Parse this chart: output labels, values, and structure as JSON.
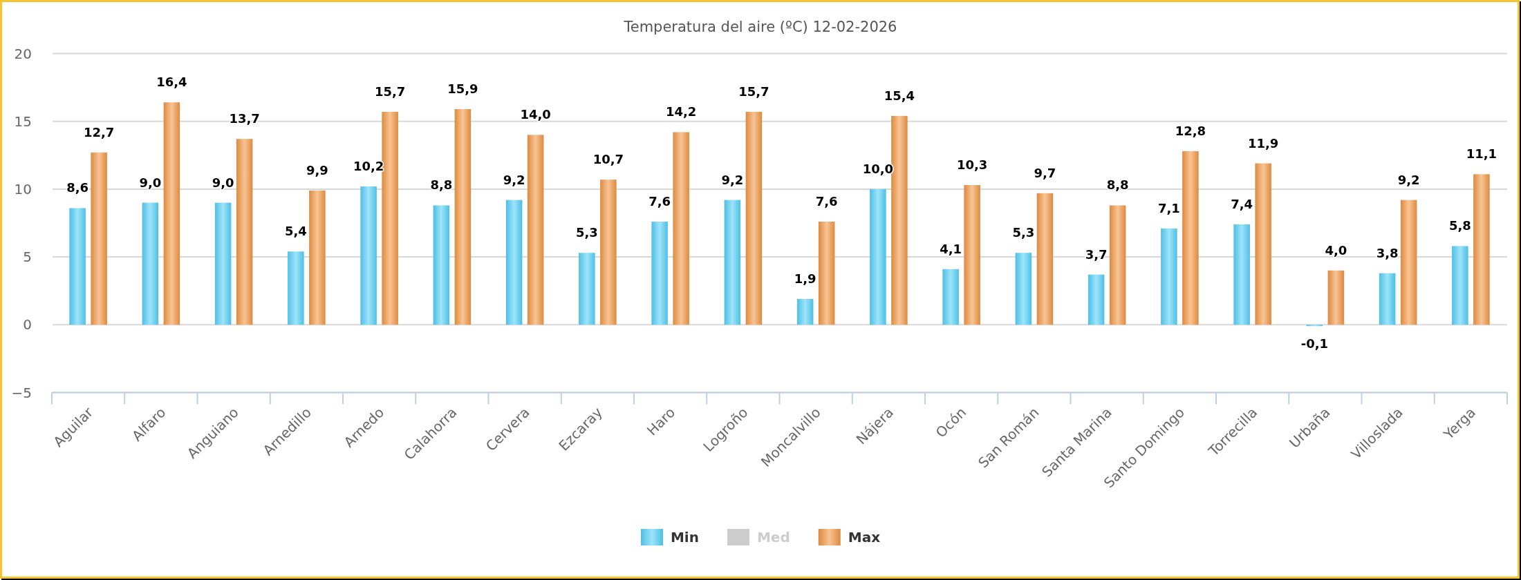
{
  "chart_data": {
    "type": "bar",
    "title": "Temperatura del aire (ºC) 12-02-2026",
    "categories": [
      "Aguilar",
      "Alfaro",
      "Anguiano",
      "Arnedillo",
      "Arnedo",
      "Calahorra",
      "Cervera",
      "Ezcaray",
      "Haro",
      "Logroño",
      "Moncalvillo",
      "Nájera",
      "Ocón",
      "San Román",
      "Santa Marina",
      "Santo Domingo",
      "Torrecilla",
      "Urbaña",
      "Villoslada",
      "Yerga"
    ],
    "series": [
      {
        "name": "Min",
        "color": "#4fbfe3",
        "values": [
          8.6,
          9.0,
          9.0,
          5.4,
          10.2,
          8.8,
          9.2,
          5.3,
          7.6,
          9.2,
          1.9,
          10.0,
          4.1,
          5.3,
          3.7,
          7.1,
          7.4,
          -0.1,
          3.8,
          5.8
        ],
        "value_labels": [
          "8,6",
          "9,0",
          "9,0",
          "5,4",
          "10,2",
          "8,8",
          "9,2",
          "5,3",
          "7,6",
          "9,2",
          "1,9",
          "10,0",
          "4,1",
          "5,3",
          "3,7",
          "7,1",
          "7,4",
          "-0,1",
          "3,8",
          "5,8"
        ]
      },
      {
        "name": "Med",
        "color": "#cccccc",
        "values": [
          null,
          null,
          null,
          null,
          null,
          null,
          null,
          null,
          null,
          null,
          null,
          null,
          null,
          null,
          null,
          null,
          null,
          null,
          null,
          null
        ]
      },
      {
        "name": "Max",
        "color": "#dc8a40",
        "values": [
          12.7,
          16.4,
          13.7,
          9.9,
          15.7,
          15.9,
          14.0,
          10.7,
          14.2,
          15.7,
          7.6,
          15.4,
          10.3,
          9.7,
          8.8,
          12.8,
          11.9,
          4.0,
          9.2,
          11.1
        ],
        "value_labels": [
          "12,7",
          "16,4",
          "13,7",
          "9,9",
          "15,7",
          "15,9",
          "14,0",
          "10,7",
          "14,2",
          "15,7",
          "7,6",
          "15,4",
          "10,3",
          "9,7",
          "8,8",
          "12,8",
          "11,9",
          "4,0",
          "9,2",
          "11,1"
        ]
      }
    ],
    "ylim": [
      -5,
      20
    ],
    "yticks": [
      {
        "value": -5,
        "label": "−5"
      },
      0,
      5,
      10,
      15,
      20
    ],
    "grid": "y",
    "legend": "bottom"
  }
}
